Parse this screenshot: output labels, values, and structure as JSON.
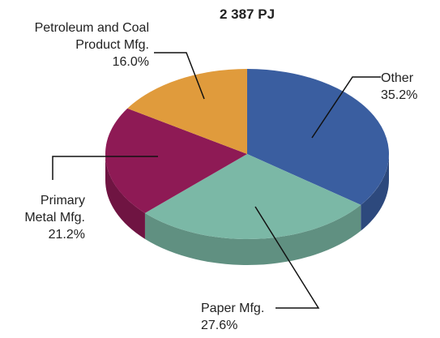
{
  "chart_data": {
    "type": "pie",
    "title": "2 387 PJ",
    "categories": [
      "Other",
      "Paper Mfg.",
      "Primary Metal Mfg.",
      "Petroleum and Coal Product Mfg."
    ],
    "values": [
      35.2,
      27.6,
      21.2,
      16.0
    ],
    "value_labels": [
      "35.2%",
      "27.6%",
      "21.2%",
      "16.0%"
    ],
    "colors": [
      "#3a5ea0",
      "#7bb8a6",
      "#8e1a55",
      "#e09b3c"
    ]
  }
}
